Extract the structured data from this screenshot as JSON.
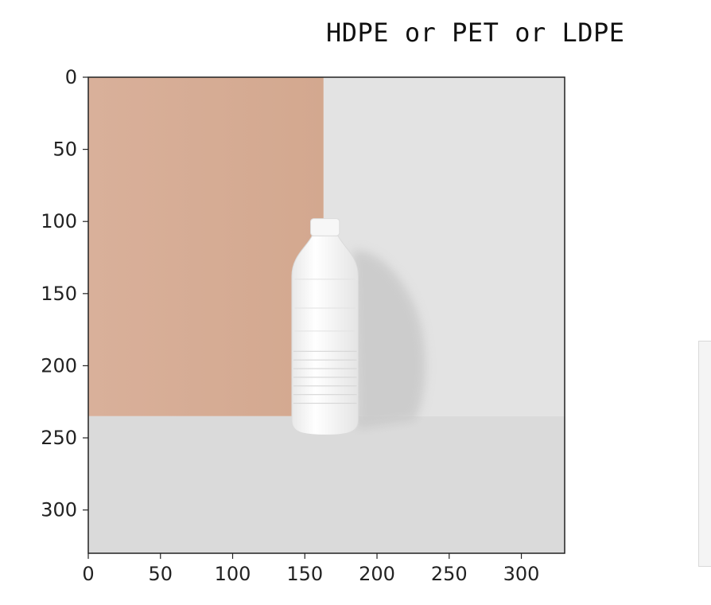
{
  "title": "HDPE or PET or LDPE",
  "chart_data": {
    "type": "image",
    "title": "HDPE or PET or LDPE",
    "xlabel": "",
    "ylabel": "",
    "xlim": [
      0,
      330
    ],
    "ylim": [
      330,
      0
    ],
    "x_ticks": [
      0,
      50,
      100,
      150,
      200,
      250,
      300
    ],
    "y_ticks": [
      0,
      50,
      100,
      150,
      200,
      250,
      300
    ],
    "grid": false,
    "image_content": {
      "background_left_color": "#d7ad95",
      "background_right_color": "#e3e3e3",
      "floor_color": "#dadada",
      "wall_split_x": 163,
      "floor_y": 235,
      "object": "plastic-bottle",
      "bottle_color": "#f5f5f5",
      "bottle_extent_x": [
        140,
        188
      ],
      "bottle_extent_y": [
        98,
        248
      ]
    }
  }
}
